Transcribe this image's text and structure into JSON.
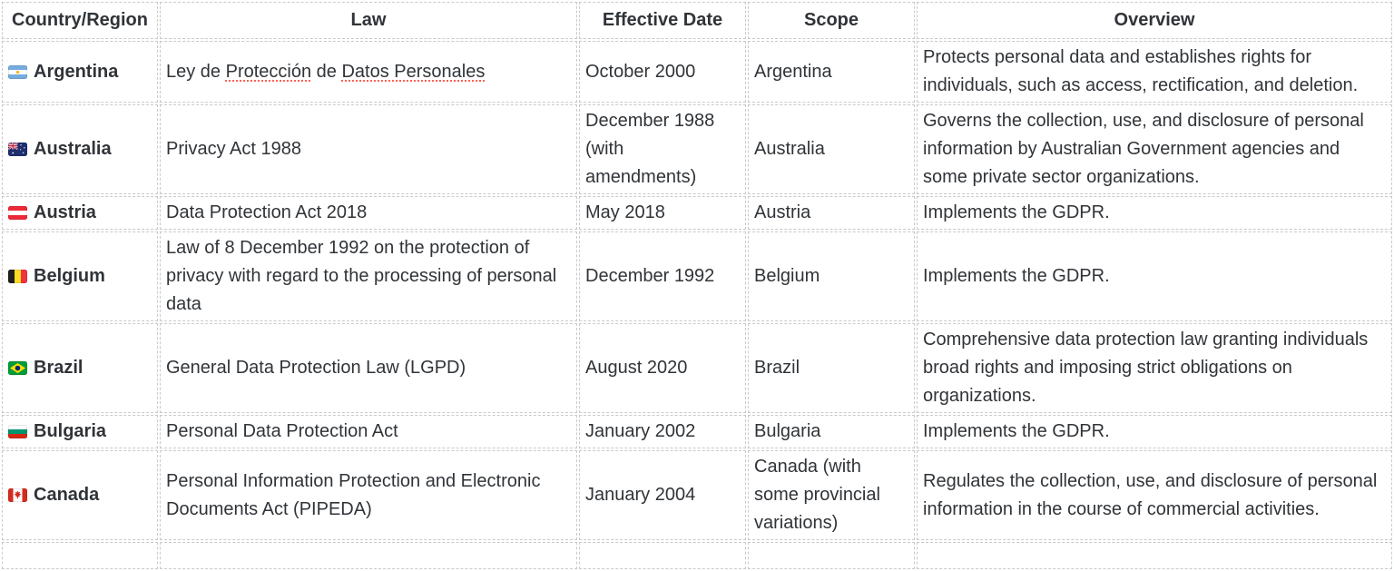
{
  "table": {
    "columns": [
      {
        "label": "Country/Region"
      },
      {
        "label": "Law"
      },
      {
        "label": "Effective Date"
      },
      {
        "label": "Scope"
      },
      {
        "label": "Overview"
      }
    ],
    "rows": [
      {
        "country": "Argentina",
        "flag_icon": "argentina-flag-icon",
        "law_segments": [
          {
            "text": "Ley de "
          },
          {
            "text": "Protección",
            "misspelled": true
          },
          {
            "text": " de "
          },
          {
            "text": "Datos Personales",
            "misspelled": true
          }
        ],
        "effective_date": "October 2000",
        "scope": "Argentina",
        "overview": "Protects personal data and establishes rights for individuals, such as access, rectification, and deletion."
      },
      {
        "country": "Australia",
        "flag_icon": "australia-flag-icon",
        "law_segments": [
          {
            "text": "Privacy Act 1988"
          }
        ],
        "effective_date": "December 1988 (with amendments)",
        "scope": "Australia",
        "overview": "Governs the collection, use, and disclosure of personal information by Australian Government agencies and some private sector organizations."
      },
      {
        "country": "Austria",
        "flag_icon": "austria-flag-icon",
        "law_segments": [
          {
            "text": "Data Protection Act 2018"
          }
        ],
        "effective_date": "May 2018",
        "scope": "Austria",
        "overview": "Implements the GDPR."
      },
      {
        "country": "Belgium",
        "flag_icon": "belgium-flag-icon",
        "law_segments": [
          {
            "text": "Law of 8 December 1992 on the protection of privacy with regard to the processing of personal data"
          }
        ],
        "effective_date": "December 1992",
        "scope": "Belgium",
        "overview": "Implements the GDPR."
      },
      {
        "country": "Brazil",
        "flag_icon": "brazil-flag-icon",
        "law_segments": [
          {
            "text": "General Data Protection Law (LGPD)"
          }
        ],
        "effective_date": "August 2020",
        "scope": "Brazil",
        "overview": "Comprehensive data protection law granting individuals broad rights and imposing strict obligations on organizations."
      },
      {
        "country": "Bulgaria",
        "flag_icon": "bulgaria-flag-icon",
        "law_segments": [
          {
            "text": "Personal Data Protection Act"
          }
        ],
        "effective_date": "January 2002",
        "scope": "Bulgaria",
        "overview": "Implements the GDPR."
      },
      {
        "country": "Canada",
        "flag_icon": "canada-flag-icon",
        "law_segments": [
          {
            "text": "Personal Information Protection and Electronic Documents Act (PIPEDA)"
          }
        ],
        "effective_date": "January 2004",
        "scope": "Canada (with some provincial variations)",
        "overview": "Regulates the collection, use, and disclosure of personal information in the course of commercial activities."
      }
    ]
  },
  "colors": {
    "text": "#303438",
    "border": "#c9cacc",
    "misspell_underline": "#ff6154",
    "background": "#ffffff"
  }
}
